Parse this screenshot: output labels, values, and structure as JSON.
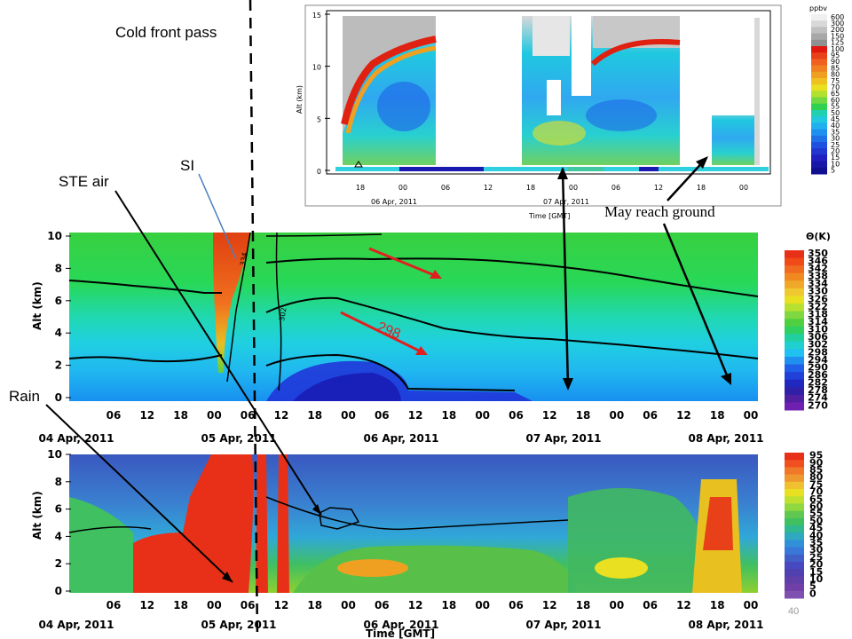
{
  "slide": {
    "page_number": "40",
    "annotations": {
      "cold_front": "Cold front pass",
      "si": "SI",
      "ste_air": "STE air",
      "rain": "Rain",
      "may_reach_ground": "May reach ground",
      "contour_298": "298"
    }
  },
  "colors": {
    "red": "#e02010",
    "orange": "#f08a20",
    "yellow": "#e8e820",
    "green": "#30d040",
    "cyan": "#22d8e8",
    "blue": "#2040e0",
    "navy": "#1a1ab0",
    "grey": "#c8c8c8"
  },
  "chart_data": [
    {
      "id": "ozone_lidar",
      "type": "heatmap",
      "ylabel": "Alt (km)",
      "xlabel": "Time [GMT]",
      "ylim": [
        0,
        15
      ],
      "y_ticks": [
        "0",
        "5",
        "10",
        "15"
      ],
      "x_ticks": [
        "18",
        "00",
        "06",
        "12",
        "18",
        "00",
        "06",
        "12",
        "18",
        "00"
      ],
      "date_labels": [
        "06 Apr, 2011",
        "07 Apr, 2011"
      ],
      "colorbar_unit": "ppbv",
      "colorbar_levels": [
        "600",
        "300",
        "200",
        "150",
        "125",
        "100",
        "95",
        "90",
        "85",
        "80",
        "75",
        "70",
        "65",
        "60",
        "55",
        "50",
        "45",
        "40",
        "35",
        "30",
        "25",
        "20",
        "15",
        "10",
        "5"
      ]
    },
    {
      "id": "potential_temperature",
      "type": "heatmap",
      "ylabel": "Alt (km)",
      "xlabel": "Time [GMT]",
      "ylim": [
        0,
        10
      ],
      "y_ticks": [
        "0",
        "2",
        "4",
        "6",
        "8",
        "10"
      ],
      "x_ticks": [
        "06",
        "12",
        "18",
        "00",
        "06",
        "12",
        "18",
        "00",
        "06",
        "12",
        "18",
        "00",
        "06",
        "12",
        "18",
        "00",
        "06",
        "12",
        "18",
        "00"
      ],
      "date_labels": [
        "04 Apr, 2011",
        "05 Apr, 2011",
        "06 Apr, 2011",
        "07 Apr, 2011",
        "08 Apr, 2011"
      ],
      "colorbar_unit": "Θ(K)",
      "colorbar_levels": [
        "350",
        "346",
        "342",
        "338",
        "334",
        "330",
        "326",
        "322",
        "318",
        "314",
        "310",
        "306",
        "302",
        "298",
        "294",
        "290",
        "286",
        "282",
        "278",
        "274",
        "270"
      ],
      "contour_labels": [
        "334",
        "302"
      ]
    },
    {
      "id": "relative_humidity",
      "type": "heatmap",
      "ylabel": "Alt (km)",
      "xlabel": "Time [GMT]",
      "ylim": [
        0,
        10
      ],
      "y_ticks": [
        "0",
        "2",
        "4",
        "6",
        "8",
        "10"
      ],
      "x_ticks": [
        "06",
        "12",
        "18",
        "00",
        "06",
        "12",
        "18",
        "00",
        "06",
        "12",
        "18",
        "00",
        "06",
        "12",
        "18",
        "00",
        "06",
        "12",
        "18",
        "00"
      ],
      "date_labels": [
        "04 Apr, 2011",
        "05 Apr, 2011",
        "06 Apr, 2011",
        "07 Apr, 2011",
        "08 Apr, 2011"
      ],
      "colorbar_levels": [
        "95",
        "90",
        "85",
        "80",
        "75",
        "70",
        "65",
        "60",
        "55",
        "50",
        "45",
        "40",
        "35",
        "30",
        "25",
        "20",
        "15",
        "10",
        "5",
        "0"
      ]
    }
  ]
}
